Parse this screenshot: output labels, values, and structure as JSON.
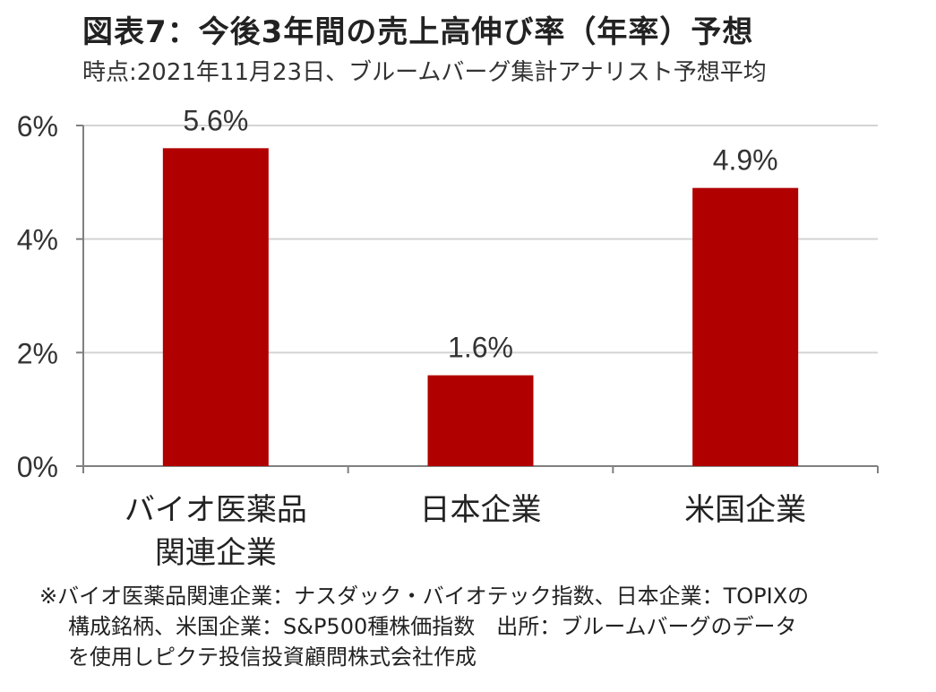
{
  "title": "図表7：今後3年間の売上高伸び率（年率）予想",
  "subtitle": "時点:2021年11月23日、ブルームバーグ集計アナリスト予想平均",
  "chart_data": {
    "type": "bar",
    "categories": [
      [
        "バイオ医薬品",
        "関連企業"
      ],
      [
        "日本企業"
      ],
      [
        "米国企業"
      ]
    ],
    "values": [
      5.6,
      1.6,
      4.9
    ],
    "data_labels": [
      "5.6%",
      "1.6%",
      "4.9%"
    ],
    "ylim": [
      0,
      6
    ],
    "y_ticks": [
      0,
      2,
      4,
      6
    ],
    "y_tick_labels": [
      "0%",
      "2%",
      "4%",
      "6%"
    ],
    "bar_color": "#b10000",
    "grid": true,
    "grid_color": "#d4d4d4",
    "legend": "none"
  },
  "note": {
    "line1": "※バイオ医薬品関連企業：ナスダック・バイオテック指数、日本企業：TOPIXの",
    "line2": "構成銘柄、米国企業：S&P500種株価指数　出所：ブルームバーグのデータ",
    "line3": "を使用しピクテ投信投資顧問株式会社作成"
  }
}
